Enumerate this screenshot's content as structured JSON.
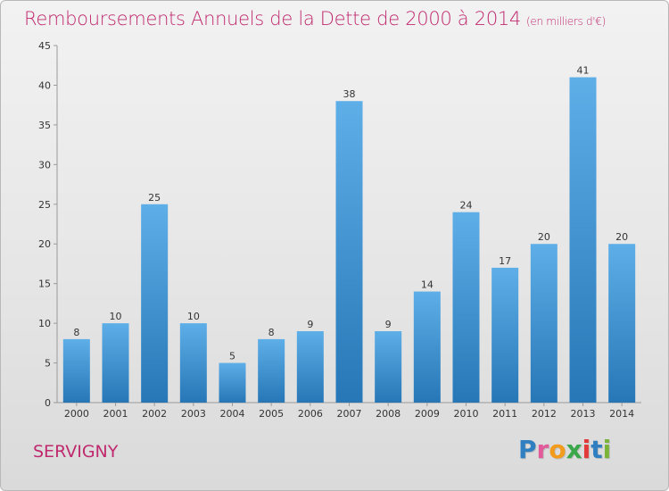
{
  "title": "Remboursements Annuels de la Dette de 2000 à 2014",
  "unit": "(en milliers d'€)",
  "town": "SERVIGNY",
  "logo": {
    "letters": [
      "P",
      "r",
      "o",
      "x",
      "i",
      "t",
      "i"
    ],
    "colors": [
      "#2f7fc1",
      "#e35a9b",
      "#f29b1d",
      "#3aa84a",
      "#e23a3a",
      "#2f7fc1",
      "#7ab43a"
    ]
  },
  "colors": {
    "accent": "#c0296e",
    "bar_light": "#5eaee8",
    "bar_dark": "#2777b7"
  },
  "chart_data": {
    "type": "bar",
    "categories": [
      "2000",
      "2001",
      "2002",
      "2003",
      "2004",
      "2005",
      "2006",
      "2007",
      "2008",
      "2009",
      "2010",
      "2011",
      "2012",
      "2013",
      "2014"
    ],
    "values": [
      8,
      10,
      25,
      10,
      5,
      8,
      9,
      38,
      9,
      14,
      24,
      17,
      20,
      41,
      20
    ],
    "ylim": [
      0,
      45
    ],
    "yticks": [
      0,
      5,
      10,
      15,
      20,
      25,
      30,
      35,
      40,
      45
    ],
    "grid": false,
    "data_labels": true
  }
}
